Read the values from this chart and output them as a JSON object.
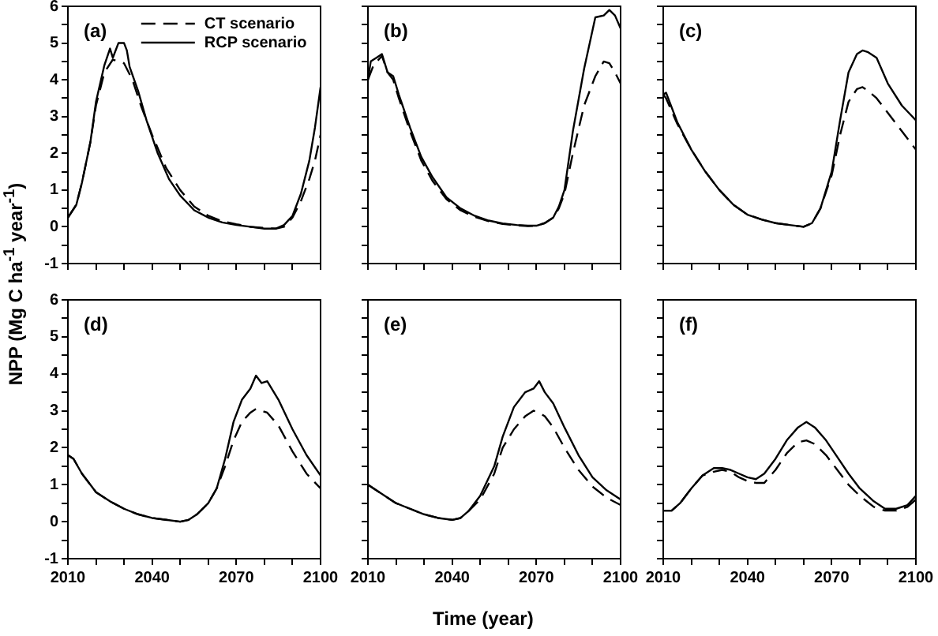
{
  "chart_data": [
    {
      "type": "line",
      "annotations": [
        "(a)"
      ],
      "ylabel": "NPP (Mg C ha$^{-1}$ year$^{-1}$)",
      "legend": "top right",
      "tick_labels": "y",
      "grid": false,
      "xlim": [
        2010,
        2100
      ],
      "xticks": [
        2010,
        {
          "value": 2020,
          "label": null
        },
        {
          "value": 2030,
          "label": null
        },
        2040,
        {
          "value": 2050,
          "label": null
        },
        {
          "value": 2060,
          "label": null
        },
        2070,
        {
          "value": 2080,
          "label": null
        },
        {
          "value": 2090,
          "label": null
        },
        2100
      ],
      "ylim": [
        -1,
        6
      ],
      "yticks": [
        -1,
        {
          "value": -0.5,
          "label": null
        },
        0,
        {
          "value": 0.5,
          "label": null
        },
        1,
        {
          "value": 1.5,
          "label": null
        },
        2,
        {
          "value": 2.5,
          "label": null
        },
        3,
        {
          "value": 3.5,
          "label": null
        },
        4,
        {
          "value": 4.5,
          "label": null
        },
        5,
        {
          "value": 5.5,
          "label": null
        },
        6
      ],
      "series": [
        {
          "name": "CT scenario",
          "color": "#000000",
          "line_style": "dashed",
          "x": [
            2010,
            2013,
            2015,
            2018,
            2020,
            2023,
            2026,
            2028,
            2030,
            2033,
            2036,
            2040,
            2045,
            2050,
            2055,
            2060,
            2065,
            2070,
            2075,
            2080,
            2084,
            2087,
            2090,
            2093,
            2096,
            2098,
            2100
          ],
          "values": [
            0.25,
            0.6,
            1.2,
            2.3,
            3.3,
            4.2,
            4.55,
            4.5,
            4.45,
            4.0,
            3.3,
            2.5,
            1.6,
            1.0,
            0.55,
            0.3,
            0.15,
            0.07,
            0.0,
            -0.03,
            -0.05,
            0.0,
            0.25,
            0.7,
            1.3,
            1.8,
            2.5
          ]
        },
        {
          "name": "RCP scenario",
          "color": "#000000",
          "line_style": "solid",
          "x": [
            2010,
            2013,
            2015,
            2018,
            2020,
            2023,
            2025,
            2026,
            2028,
            2030,
            2031,
            2032,
            2035,
            2038,
            2042,
            2046,
            2050,
            2055,
            2060,
            2065,
            2070,
            2075,
            2080,
            2084,
            2087,
            2090,
            2093,
            2096,
            2098,
            2100
          ],
          "values": [
            0.25,
            0.6,
            1.2,
            2.3,
            3.4,
            4.4,
            4.85,
            4.6,
            5.0,
            5.0,
            4.8,
            4.35,
            3.7,
            2.9,
            2.0,
            1.3,
            0.85,
            0.45,
            0.25,
            0.12,
            0.05,
            0.0,
            -0.05,
            -0.05,
            0.05,
            0.3,
            0.9,
            1.8,
            2.7,
            3.8
          ]
        }
      ]
    },
    {
      "type": "line",
      "annotations": [
        "(b)"
      ],
      "tick_labels": false,
      "grid": false,
      "xlim": [
        2010,
        2100
      ],
      "xticks": [
        2010,
        {
          "value": 2020,
          "label": null
        },
        {
          "value": 2030,
          "label": null
        },
        2040,
        {
          "value": 2050,
          "label": null
        },
        {
          "value": 2060,
          "label": null
        },
        2070,
        {
          "value": 2080,
          "label": null
        },
        {
          "value": 2090,
          "label": null
        },
        2100
      ],
      "ylim": [
        -1,
        6
      ],
      "yticks": [
        -1,
        {
          "value": -0.5,
          "label": null
        },
        0,
        {
          "value": 0.5,
          "label": null
        },
        1,
        {
          "value": 1.5,
          "label": null
        },
        2,
        {
          "value": 2.5,
          "label": null
        },
        3,
        {
          "value": 3.5,
          "label": null
        },
        4,
        {
          "value": 4.5,
          "label": null
        },
        5,
        {
          "value": 5.5,
          "label": null
        },
        6
      ],
      "series": [
        {
          "color": "#000000",
          "line_style": "dashed",
          "x": [
            2010,
            2012,
            2015,
            2017,
            2019,
            2021,
            2025,
            2029,
            2033,
            2038,
            2043,
            2048,
            2053,
            2058,
            2063,
            2067,
            2070,
            2073,
            2076,
            2078,
            2080,
            2083,
            2087,
            2091,
            2094,
            2096,
            2098,
            2100
          ],
          "values": [
            4.0,
            4.4,
            4.65,
            4.2,
            4.0,
            3.5,
            2.6,
            1.8,
            1.25,
            0.75,
            0.45,
            0.27,
            0.15,
            0.08,
            0.04,
            0.02,
            0.03,
            0.1,
            0.25,
            0.5,
            0.9,
            2.0,
            3.3,
            4.1,
            4.5,
            4.45,
            4.2,
            3.9
          ]
        },
        {
          "color": "#000000",
          "line_style": "solid",
          "x": [
            2010,
            2011,
            2013,
            2015,
            2017,
            2019,
            2021,
            2025,
            2029,
            2033,
            2038,
            2043,
            2048,
            2053,
            2058,
            2063,
            2067,
            2070,
            2073,
            2076,
            2078,
            2080,
            2083,
            2087,
            2091,
            2094,
            2096,
            2098,
            2100
          ],
          "values": [
            4.0,
            4.5,
            4.6,
            4.7,
            4.2,
            4.1,
            3.6,
            2.7,
            1.9,
            1.35,
            0.8,
            0.5,
            0.3,
            0.17,
            0.09,
            0.05,
            0.03,
            0.03,
            0.1,
            0.25,
            0.55,
            1.0,
            2.6,
            4.3,
            5.7,
            5.75,
            5.9,
            5.75,
            5.4
          ]
        }
      ]
    },
    {
      "type": "line",
      "annotations": [
        "(c)"
      ],
      "tick_labels": false,
      "grid": false,
      "xlim": [
        2010,
        2100
      ],
      "xticks": [
        2010,
        {
          "value": 2020,
          "label": null
        },
        {
          "value": 2030,
          "label": null
        },
        2040,
        {
          "value": 2050,
          "label": null
        },
        {
          "value": 2060,
          "label": null
        },
        2070,
        {
          "value": 2080,
          "label": null
        },
        {
          "value": 2090,
          "label": null
        },
        2100
      ],
      "ylim": [
        -1,
        6
      ],
      "yticks": [
        -1,
        {
          "value": -0.5,
          "label": null
        },
        0,
        {
          "value": 0.5,
          "label": null
        },
        1,
        {
          "value": 1.5,
          "label": null
        },
        2,
        {
          "value": 2.5,
          "label": null
        },
        3,
        {
          "value": 3.5,
          "label": null
        },
        4,
        {
          "value": 4.5,
          "label": null
        },
        5,
        {
          "value": 5.5,
          "label": null
        },
        6
      ],
      "series": [
        {
          "color": "#000000",
          "line_style": "dashed",
          "x": [
            2010,
            2011,
            2015,
            2020,
            2025,
            2030,
            2035,
            2040,
            2045,
            2050,
            2055,
            2060,
            2063,
            2066,
            2070,
            2073,
            2076,
            2079,
            2081,
            2083,
            2086,
            2090,
            2095,
            2100
          ],
          "values": [
            3.6,
            3.5,
            2.8,
            2.1,
            1.5,
            1.0,
            0.6,
            0.33,
            0.2,
            0.1,
            0.05,
            0.0,
            0.1,
            0.5,
            1.4,
            2.5,
            3.4,
            3.75,
            3.8,
            3.7,
            3.5,
            3.1,
            2.6,
            2.1
          ]
        },
        {
          "color": "#000000",
          "line_style": "solid",
          "x": [
            2010,
            2011,
            2015,
            2020,
            2025,
            2030,
            2035,
            2040,
            2045,
            2050,
            2055,
            2060,
            2063,
            2066,
            2070,
            2073,
            2076,
            2079,
            2081,
            2083,
            2086,
            2090,
            2095,
            2100
          ],
          "values": [
            3.6,
            3.65,
            2.85,
            2.1,
            1.5,
            1.0,
            0.6,
            0.33,
            0.2,
            0.1,
            0.05,
            0.0,
            0.1,
            0.5,
            1.5,
            2.9,
            4.2,
            4.7,
            4.8,
            4.75,
            4.6,
            3.9,
            3.3,
            2.9
          ]
        }
      ]
    },
    {
      "type": "line",
      "annotations": [
        "(d)"
      ],
      "tick_labels": "xy",
      "grid": false,
      "xlim": [
        2010,
        2100
      ],
      "xticks": [
        2010,
        {
          "value": 2020,
          "label": null
        },
        {
          "value": 2030,
          "label": null
        },
        2040,
        {
          "value": 2050,
          "label": null
        },
        {
          "value": 2060,
          "label": null
        },
        2070,
        {
          "value": 2080,
          "label": null
        },
        {
          "value": 2090,
          "label": null
        },
        2100
      ],
      "ylim": [
        -1,
        6
      ],
      "yticks": [
        -1,
        {
          "value": -0.5,
          "label": null
        },
        0,
        {
          "value": 0.5,
          "label": null
        },
        1,
        {
          "value": 1.5,
          "label": null
        },
        2,
        {
          "value": 2.5,
          "label": null
        },
        3,
        {
          "value": 3.5,
          "label": null
        },
        4,
        {
          "value": 4.5,
          "label": null
        },
        5,
        {
          "value": 5.5,
          "label": null
        },
        6
      ],
      "series": [
        {
          "color": "#000000",
          "line_style": "dashed",
          "x": [
            2010,
            2012,
            2015,
            2018,
            2020,
            2025,
            2030,
            2035,
            2040,
            2045,
            2050,
            2053,
            2056,
            2060,
            2063,
            2066,
            2069,
            2072,
            2075,
            2077,
            2079,
            2081,
            2085,
            2090,
            2095,
            2100
          ],
          "values": [
            1.8,
            1.7,
            1.3,
            1.0,
            0.8,
            0.55,
            0.35,
            0.2,
            0.1,
            0.05,
            0.0,
            0.05,
            0.2,
            0.5,
            0.9,
            1.5,
            2.2,
            2.7,
            2.95,
            3.05,
            3.0,
            2.95,
            2.6,
            1.9,
            1.3,
            0.9
          ]
        },
        {
          "color": "#000000",
          "line_style": "solid",
          "x": [
            2010,
            2012,
            2015,
            2018,
            2020,
            2025,
            2030,
            2035,
            2040,
            2045,
            2050,
            2053,
            2056,
            2060,
            2063,
            2066,
            2069,
            2072,
            2075,
            2077,
            2079,
            2081,
            2085,
            2090,
            2095,
            2100
          ],
          "values": [
            1.8,
            1.7,
            1.3,
            1.0,
            0.8,
            0.55,
            0.35,
            0.2,
            0.1,
            0.05,
            0.0,
            0.05,
            0.2,
            0.5,
            0.9,
            1.7,
            2.7,
            3.3,
            3.6,
            3.95,
            3.75,
            3.8,
            3.3,
            2.5,
            1.8,
            1.25
          ]
        }
      ]
    },
    {
      "type": "line",
      "annotations": [
        "(e)"
      ],
      "xlabel": "Time (year)",
      "tick_labels": "x",
      "grid": false,
      "xlim": [
        2010,
        2100
      ],
      "xticks": [
        2010,
        {
          "value": 2020,
          "label": null
        },
        {
          "value": 2030,
          "label": null
        },
        2040,
        {
          "value": 2050,
          "label": null
        },
        {
          "value": 2060,
          "label": null
        },
        2070,
        {
          "value": 2080,
          "label": null
        },
        {
          "value": 2090,
          "label": null
        },
        2100
      ],
      "ylim": [
        -1,
        6
      ],
      "yticks": [
        -1,
        {
          "value": -0.5,
          "label": null
        },
        0,
        {
          "value": 0.5,
          "label": null
        },
        1,
        {
          "value": 1.5,
          "label": null
        },
        2,
        {
          "value": 2.5,
          "label": null
        },
        3,
        {
          "value": 3.5,
          "label": null
        },
        4,
        {
          "value": 4.5,
          "label": null
        },
        5,
        {
          "value": 5.5,
          "label": null
        },
        6
      ],
      "series": [
        {
          "color": "#000000",
          "line_style": "dashed",
          "x": [
            2010,
            2015,
            2020,
            2025,
            2030,
            2035,
            2040,
            2043,
            2046,
            2050,
            2055,
            2058,
            2062,
            2066,
            2069,
            2071,
            2073,
            2076,
            2080,
            2085,
            2090,
            2095,
            2100
          ],
          "values": [
            1.0,
            0.75,
            0.5,
            0.35,
            0.2,
            0.1,
            0.05,
            0.1,
            0.3,
            0.6,
            1.3,
            2.0,
            2.5,
            2.85,
            3.0,
            2.95,
            2.85,
            2.55,
            2.0,
            1.4,
            0.95,
            0.65,
            0.45
          ]
        },
        {
          "color": "#000000",
          "line_style": "solid",
          "x": [
            2010,
            2015,
            2020,
            2025,
            2030,
            2035,
            2040,
            2043,
            2046,
            2050,
            2055,
            2058,
            2062,
            2066,
            2069,
            2071,
            2073,
            2076,
            2080,
            2085,
            2090,
            2095,
            2100
          ],
          "values": [
            1.0,
            0.75,
            0.5,
            0.35,
            0.2,
            0.1,
            0.05,
            0.1,
            0.3,
            0.7,
            1.5,
            2.3,
            3.1,
            3.5,
            3.6,
            3.8,
            3.5,
            3.2,
            2.55,
            1.8,
            1.2,
            0.85,
            0.6
          ]
        }
      ]
    },
    {
      "type": "line",
      "annotations": [
        "(f)"
      ],
      "tick_labels": "x",
      "grid": false,
      "xlim": [
        2010,
        2100
      ],
      "xticks": [
        2010,
        {
          "value": 2020,
          "label": null
        },
        {
          "value": 2030,
          "label": null
        },
        2040,
        {
          "value": 2050,
          "label": null
        },
        {
          "value": 2060,
          "label": null
        },
        2070,
        {
          "value": 2080,
          "label": null
        },
        {
          "value": 2090,
          "label": null
        },
        2100
      ],
      "ylim": [
        -1,
        6
      ],
      "yticks": [
        -1,
        {
          "value": -0.5,
          "label": null
        },
        0,
        {
          "value": 0.5,
          "label": null
        },
        1,
        {
          "value": 1.5,
          "label": null
        },
        2,
        {
          "value": 2.5,
          "label": null
        },
        3,
        {
          "value": 3.5,
          "label": null
        },
        4,
        {
          "value": 4.5,
          "label": null
        },
        5,
        {
          "value": 5.5,
          "label": null
        },
        6
      ],
      "series": [
        {
          "color": "#000000",
          "line_style": "dashed",
          "x": [
            2010,
            2013,
            2016,
            2020,
            2024,
            2028,
            2031,
            2034,
            2037,
            2040,
            2043,
            2046,
            2050,
            2054,
            2058,
            2061,
            2064,
            2068,
            2072,
            2076,
            2080,
            2085,
            2089,
            2093,
            2097,
            2100
          ],
          "values": [
            0.3,
            0.3,
            0.5,
            0.9,
            1.25,
            1.35,
            1.4,
            1.35,
            1.2,
            1.1,
            1.05,
            1.05,
            1.4,
            1.85,
            2.15,
            2.2,
            2.1,
            1.8,
            1.4,
            1.0,
            0.7,
            0.4,
            0.3,
            0.3,
            0.4,
            0.6
          ]
        },
        {
          "color": "#000000",
          "line_style": "solid",
          "x": [
            2010,
            2013,
            2016,
            2020,
            2024,
            2028,
            2031,
            2034,
            2037,
            2040,
            2043,
            2046,
            2050,
            2054,
            2058,
            2061,
            2064,
            2068,
            2072,
            2076,
            2080,
            2085,
            2089,
            2093,
            2097,
            2100
          ],
          "values": [
            0.3,
            0.3,
            0.5,
            0.9,
            1.25,
            1.45,
            1.45,
            1.4,
            1.3,
            1.2,
            1.15,
            1.3,
            1.7,
            2.2,
            2.55,
            2.7,
            2.55,
            2.2,
            1.75,
            1.3,
            0.9,
            0.55,
            0.35,
            0.35,
            0.45,
            0.7
          ]
        }
      ]
    }
  ]
}
